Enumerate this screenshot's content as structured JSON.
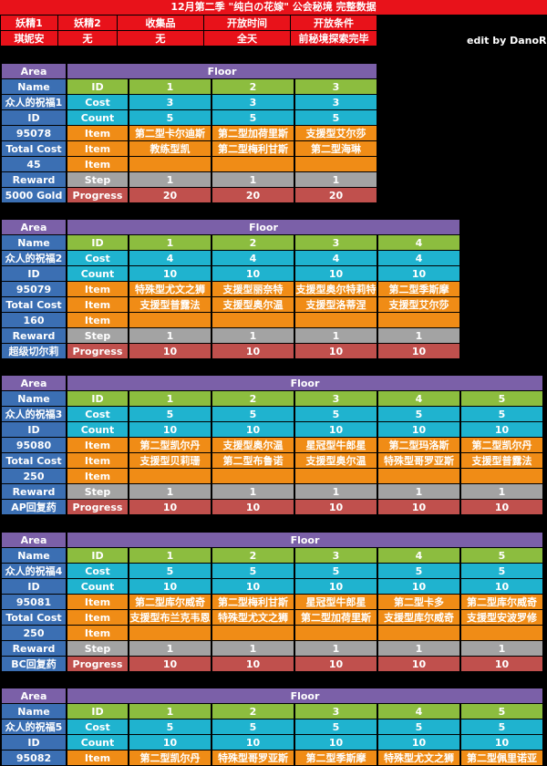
{
  "title": "12月第二季 \"纯白の花嫁\" 公会秘境 完整数据",
  "header": {
    "labels": [
      "妖精1",
      "妖精2",
      "收集品",
      "开放时间",
      "开放条件"
    ],
    "values": [
      "琪妮安",
      "无",
      "无",
      "全天",
      "前秘境探索完毕"
    ]
  },
  "credit": "edit by DanoR",
  "row_labels": {
    "area": "Area",
    "floor": "Floor",
    "name": "Name",
    "id": "ID",
    "cost": "Cost",
    "count": "Count",
    "item": "Item",
    "total_cost": "Total Cost",
    "reward": "Reward",
    "step": "Step",
    "progress": "Progress"
  },
  "sections": [
    {
      "name": "众人的祝福1",
      "id": "95078",
      "total_cost": "45",
      "reward": "5000 Gold",
      "floors": [
        "1",
        "2",
        "3"
      ],
      "cost": [
        "3",
        "3",
        "3"
      ],
      "count": [
        "5",
        "5",
        "5"
      ],
      "item1": [
        "第二型卡尔迪斯",
        "第二型加荷里斯",
        "支援型艾尔莎"
      ],
      "item2": [
        "教练型凯",
        "第二型梅利甘斯",
        "第二型海琳"
      ],
      "item3": [
        "",
        "",
        ""
      ],
      "step": [
        "1",
        "1",
        "1"
      ],
      "progress": [
        "20",
        "20",
        "20"
      ]
    },
    {
      "name": "众人的祝福2",
      "id": "95079",
      "total_cost": "160",
      "reward": "超级切尔莉",
      "floors": [
        "1",
        "2",
        "3",
        "4"
      ],
      "cost": [
        "4",
        "4",
        "4",
        "4"
      ],
      "count": [
        "10",
        "10",
        "10",
        "10"
      ],
      "item1": [
        "特殊型尤文之狮",
        "支援型丽奈特",
        "支援型奥尔特莉特",
        "第二型季斯摩"
      ],
      "item2": [
        "支援型普露法",
        "支援型奥尔温",
        "支援型洛蒂涅",
        "支援型艾尔莎"
      ],
      "item3": [
        "",
        "",
        "",
        ""
      ],
      "step": [
        "1",
        "1",
        "1",
        "1"
      ],
      "progress": [
        "10",
        "10",
        "10",
        "10"
      ]
    },
    {
      "name": "众人的祝福3",
      "id": "95080",
      "total_cost": "250",
      "reward": "AP回复药",
      "floors": [
        "1",
        "2",
        "3",
        "4",
        "5"
      ],
      "cost": [
        "5",
        "5",
        "5",
        "5",
        "5"
      ],
      "count": [
        "10",
        "10",
        "10",
        "10",
        "10"
      ],
      "item1": [
        "第二型凯尔丹",
        "支援型奥尔温",
        "星冠型牛郎星",
        "第二型玛洛斯",
        "第二型凯尔丹"
      ],
      "item2": [
        "支援型贝莉珊",
        "第二型布鲁诺",
        "支援型奥尔温",
        "特殊型哥罗亚斯",
        "支援型普露法"
      ],
      "item3": [
        "",
        "",
        "",
        "",
        ""
      ],
      "step": [
        "1",
        "1",
        "1",
        "1",
        "1"
      ],
      "progress": [
        "10",
        "10",
        "10",
        "10",
        "10"
      ]
    },
    {
      "name": "众人的祝福4",
      "id": "95081",
      "total_cost": "250",
      "reward": "BC回复药",
      "floors": [
        "1",
        "2",
        "3",
        "4",
        "5"
      ],
      "cost": [
        "5",
        "5",
        "5",
        "5",
        "5"
      ],
      "count": [
        "10",
        "10",
        "10",
        "10",
        "10"
      ],
      "item1": [
        "第二型库尔威奇",
        "第二型梅利甘斯",
        "星冠型牛郎星",
        "第二型卡多",
        "第二型库尔威奇"
      ],
      "item2": [
        "支援型布兰克韦恩",
        "特殊型尤文之狮",
        "第二型加荷里斯",
        "支援型库尔威奇",
        "支援型安波罗修"
      ],
      "item3": [
        "",
        "",
        "",
        "",
        ""
      ],
      "step": [
        "1",
        "1",
        "1",
        "1",
        "1"
      ],
      "progress": [
        "10",
        "10",
        "10",
        "10",
        "10"
      ]
    },
    {
      "name": "众人的祝福5",
      "id": "95082",
      "floors": [
        "1",
        "2",
        "3",
        "4",
        "5"
      ],
      "cost": [
        "5",
        "5",
        "5",
        "5",
        "5"
      ],
      "count": [
        "10",
        "10",
        "10",
        "10",
        "10"
      ],
      "item1": [
        "第二型凯尔丹",
        "特殊型哥罗亚斯",
        "第二型季斯摩",
        "特殊型尤文之狮",
        "第二型佩里诺亚"
      ]
    }
  ]
}
